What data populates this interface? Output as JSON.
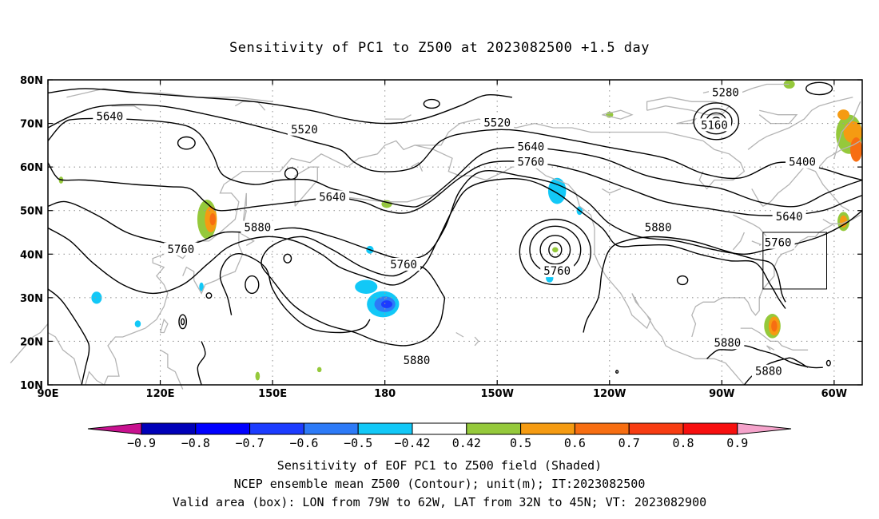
{
  "title": "Sensitivity of PC1 to Z500 at 2023082500 +1.5 day",
  "captions": [
    "Sensitivity of EOF PC1 to Z500 field (Shaded)",
    "NCEP ensemble mean Z500 (Contour); unit(m); IT:2023082500",
    "Valid area (box): LON from 79W to 62W, LAT from 32N to 45N; VT: 2023082900"
  ],
  "map": {
    "lon_range": [
      90,
      307.5
    ],
    "lat_range": [
      10,
      80
    ],
    "lon_ticks": [
      {
        "lon": 90,
        "label": "90E"
      },
      {
        "lon": 120,
        "label": "120E"
      },
      {
        "lon": 150,
        "label": "150E"
      },
      {
        "lon": 180,
        "label": "180"
      },
      {
        "lon": 210,
        "label": "150W"
      },
      {
        "lon": 240,
        "label": "120W"
      },
      {
        "lon": 270,
        "label": "90W"
      },
      {
        "lon": 300,
        "label": "60W"
      }
    ],
    "lat_ticks": [
      {
        "lat": 80,
        "label": "80N"
      },
      {
        "lat": 70,
        "label": "70N"
      },
      {
        "lat": 60,
        "label": "60N"
      },
      {
        "lat": 50,
        "label": "50N"
      },
      {
        "lat": 40,
        "label": "40N"
      },
      {
        "lat": 30,
        "label": "30N"
      },
      {
        "lat": 20,
        "label": "20N"
      },
      {
        "lat": 10,
        "label": "10N"
      }
    ],
    "valid_box": {
      "lon_min": 281,
      "lon_max": 298,
      "lat_min": 32,
      "lat_max": 45
    },
    "contour_labels": [
      {
        "text": "5640",
        "lon": 106.5,
        "lat": 71.5
      },
      {
        "text": "5520",
        "lon": 158.5,
        "lat": 68.5
      },
      {
        "text": "5520",
        "lon": 210,
        "lat": 70
      },
      {
        "text": "5280",
        "lon": 271,
        "lat": 77
      },
      {
        "text": "5160",
        "lon": 268,
        "lat": 69.5
      },
      {
        "text": "5640",
        "lon": 219,
        "lat": 64.5
      },
      {
        "text": "5760",
        "lon": 219,
        "lat": 61
      },
      {
        "text": "5400",
        "lon": 291.5,
        "lat": 61
      },
      {
        "text": "5640",
        "lon": 166,
        "lat": 53
      },
      {
        "text": "5640",
        "lon": 288,
        "lat": 48.5
      },
      {
        "text": "5880",
        "lon": 146,
        "lat": 46
      },
      {
        "text": "5880",
        "lon": 253,
        "lat": 46
      },
      {
        "text": "5760",
        "lon": 285,
        "lat": 42.5
      },
      {
        "text": "5760",
        "lon": 125.5,
        "lat": 41
      },
      {
        "text": "5760",
        "lon": 185,
        "lat": 37.5
      },
      {
        "text": "5760",
        "lon": 226,
        "lat": 36
      },
      {
        "text": "5880",
        "lon": 271.5,
        "lat": 19.5
      },
      {
        "text": "5880",
        "lon": 188.5,
        "lat": 15.5
      },
      {
        "text": "5880",
        "lon": 282.5,
        "lat": 13
      }
    ]
  },
  "colorbar": {
    "labels": [
      "−0.9",
      "−0.8",
      "−0.7",
      "−0.6",
      "−0.5",
      "−0.42",
      "0.42",
      "0.5",
      "0.6",
      "0.7",
      "0.8",
      "0.9"
    ],
    "colors": {
      "lt_m09": "#c8118f",
      "m09_m08": "#0000b8",
      "m08_m07": "#0000ff",
      "m07_m06": "#1c3cff",
      "m06_m05": "#2d7af7",
      "m05_m042": "#12c8f7",
      "m042_042": "#ffffff",
      "p042_05": "#95c93b",
      "p05_06": "#f59b12",
      "p06_07": "#f76e12",
      "p07_08": "#f73c12",
      "p08_09": "#f70f0f",
      "gt_09": "#f5a3cb"
    }
  }
}
